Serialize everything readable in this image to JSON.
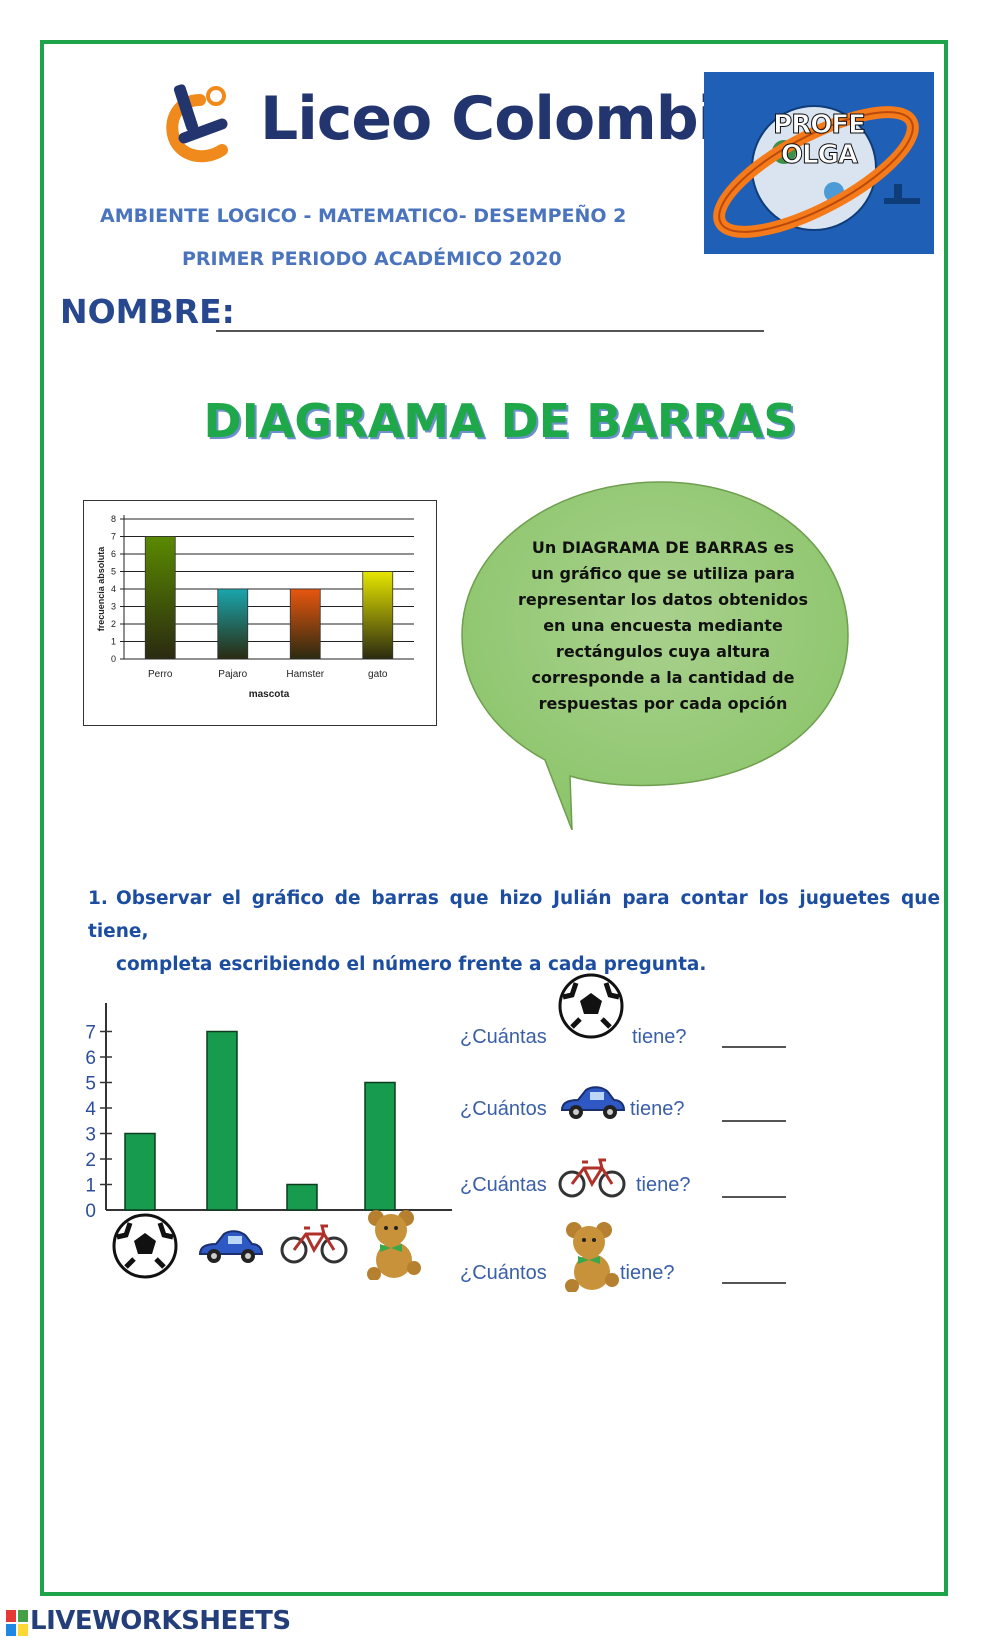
{
  "header": {
    "school_name": "Liceo Colombia",
    "badge_text_line1": "PROFE",
    "badge_text_line2": "OLGA",
    "subtitle_line1": "AMBIENTE LOGICO - MATEMATICO- DESEMPEÑO 2",
    "subtitle_line2": "PRIMER PERIODO ACADÉMICO 2020",
    "name_label": "NOMBRE:"
  },
  "title": "DIAGRAMA DE BARRAS",
  "definition": "Un DIAGRAMA DE BARRAS es un gráfico que se utiliza para representar los datos obtenidos en una encuesta mediante rectángulos cuya altura corresponde a la cantidad de respuestas por cada opción",
  "question": {
    "number": "1.",
    "line1": "Observar el gráfico de barras que hizo Julián para contar los juguetes que tiene,",
    "line2": "completa escribiendo el número frente a cada pregunta."
  },
  "questions": [
    {
      "prefix": "¿Cuántas",
      "icon": "soccer-ball-icon",
      "suffix": "tiene?",
      "answer": ""
    },
    {
      "prefix": "¿Cuántos",
      "icon": "car-icon",
      "suffix": "tiene?",
      "answer": ""
    },
    {
      "prefix": "¿Cuántas",
      "icon": "bicycle-icon",
      "suffix": "tiene?",
      "answer": ""
    },
    {
      "prefix": "¿Cuántos",
      "icon": "teddy-bear-icon",
      "suffix": "tiene?",
      "answer": ""
    }
  ],
  "footer": {
    "brand": "LIVEWORKSHEETS"
  },
  "chart_data": [
    {
      "type": "bar",
      "categories": [
        "Perro",
        "Pajaro",
        "Hamster",
        "gato"
      ],
      "values": [
        7,
        4,
        4,
        5
      ],
      "colors": [
        "#5a8a00",
        "#1aa6ad",
        "#e8560f",
        "#e6e600"
      ],
      "xlabel": "mascota",
      "ylabel": "frecuencia absoluta",
      "ylim": [
        0,
        8
      ],
      "yticks": [
        "0",
        "1",
        "2",
        "3",
        "4",
        "5",
        "6",
        "7",
        "8"
      ],
      "grid": true
    },
    {
      "type": "bar",
      "categories": [
        "soccer-ball-icon",
        "car-icon",
        "bicycle-icon",
        "teddy-bear-icon"
      ],
      "values": [
        3,
        7,
        1,
        5
      ],
      "color": "#169b4f",
      "ylim": [
        0,
        7
      ],
      "yticks": [
        "0",
        "1",
        "2",
        "3",
        "4",
        "5",
        "6",
        "7"
      ],
      "grid": false
    }
  ]
}
